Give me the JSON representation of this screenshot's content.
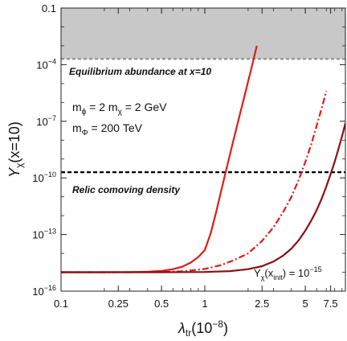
{
  "chart_data": {
    "type": "line",
    "title": "",
    "xlabel": {
      "main": "λ",
      "sub": "tr",
      "suffix": "(10",
      "sup": "−8",
      "close": ")"
    },
    "ylabel": {
      "main": "Y",
      "sub": "χ",
      "suffix": "(x=10)"
    },
    "x_scale": "log",
    "y_scale": "log",
    "xlim": [
      0.1,
      9.5
    ],
    "ylim": [
      1e-16,
      0.1
    ],
    "x_ticks": [
      {
        "value": 0.1,
        "label": "0.1"
      },
      {
        "value": 0.25,
        "label": "0.25"
      },
      {
        "value": 0.5,
        "label": "0.5"
      },
      {
        "value": 1,
        "label": "1"
      },
      {
        "value": 2.5,
        "label": "2.5"
      },
      {
        "value": 5,
        "label": "5"
      },
      {
        "value": 7.5,
        "label": "7.5"
      }
    ],
    "y_ticks": [
      {
        "value": 1e-16,
        "base": "10",
        "exp": "−16"
      },
      {
        "value": 1e-13,
        "base": "10",
        "exp": "−13"
      },
      {
        "value": 1e-10,
        "base": "10",
        "exp": "−10"
      },
      {
        "value": 1e-07,
        "base": "10",
        "exp": "−7"
      },
      {
        "value": 0.0001,
        "base": "10",
        "exp": "−4"
      },
      {
        "value": 0.1,
        "label": "0.1"
      }
    ],
    "shaded_region": {
      "y_from": 0.0002,
      "y_to": 0.1,
      "color": "#c8c8c8"
    },
    "hlines": [
      {
        "y": 0.0002,
        "color": "#909090",
        "style": "dashed"
      },
      {
        "y": 2e-10,
        "color": "#000000",
        "style": "dashed"
      }
    ],
    "series": [
      {
        "color": "#e11b1b",
        "style": "solid",
        "x": [
          0.1,
          0.2,
          0.3,
          0.4,
          0.5,
          0.6,
          0.7,
          0.8,
          0.9,
          1.0,
          1.1,
          1.2,
          1.3,
          1.4,
          1.5,
          1.6,
          1.7,
          1.8,
          1.9,
          2.0,
          2.1,
          2.2,
          2.3
        ],
        "y": [
          1e-15,
          1e-15,
          1.02e-15,
          1.07e-15,
          1.18e-15,
          1.45e-15,
          2e-15,
          3.3e-15,
          6.4e-15,
          1.5e-14,
          1.2e-13,
          1.6e-12,
          2.1e-11,
          2.2e-10,
          1.9e-09,
          1.4e-08,
          9e-08,
          5.2e-07,
          2.7e-06,
          1.3e-05,
          5.8e-05,
          0.00025,
          0.001
        ]
      },
      {
        "color": "#e11b1b",
        "style": "dashdot",
        "x": [
          0.1,
          0.3,
          0.5,
          0.7,
          1.0,
          1.3,
          1.6,
          2.0,
          2.5,
          3.0,
          3.5,
          4.0,
          4.5,
          5.0,
          5.5,
          6.0,
          6.5,
          7.0
        ],
        "y": [
          1e-15,
          1e-15,
          1.04e-15,
          1.12e-15,
          1.5e-15,
          2.4e-15,
          4.4e-15,
          1e-14,
          4.6e-14,
          2.4e-13,
          1.5e-12,
          1e-11,
          8e-11,
          7e-10,
          6e-09,
          6e-08,
          5e-07,
          4e-06
        ]
      },
      {
        "color": "#8b1010",
        "style": "solid",
        "x": [
          0.1,
          0.5,
          1.0,
          1.5,
          2.0,
          2.5,
          3.0,
          3.5,
          4.0,
          4.5,
          5.0,
          5.5,
          6.0,
          6.5,
          7.0,
          7.5,
          8.0,
          8.5,
          9.0,
          9.5
        ],
        "y": [
          1e-15,
          1e-15,
          1.03e-15,
          1.15e-15,
          1.45e-15,
          2.1e-15,
          3.7e-15,
          7.6e-15,
          1.8e-14,
          5e-14,
          1.6e-13,
          5.5e-13,
          2e-12,
          8e-12,
          3.5e-11,
          1.6e-10,
          7e-10,
          3.5e-09,
          1.6e-08,
          8e-08
        ]
      }
    ],
    "annotations": {
      "equilibrium": "Equilibrium abundance at x=10",
      "relic": "Relic comoving density",
      "mass_line1": {
        "a": "m",
        "a_sub": "ϕ",
        "b": " = 2 m",
        "b_sub": "χ",
        "c": " = 2 GeV"
      },
      "mass_line2": {
        "a": "m",
        "a_sub": "Φ",
        "b": " = 200 TeV"
      },
      "init": {
        "a": "Y",
        "a_sub": "χ",
        "b": "(x",
        "b_sub": "init",
        "c": ") = 10",
        "c_sup": "−15"
      }
    }
  }
}
